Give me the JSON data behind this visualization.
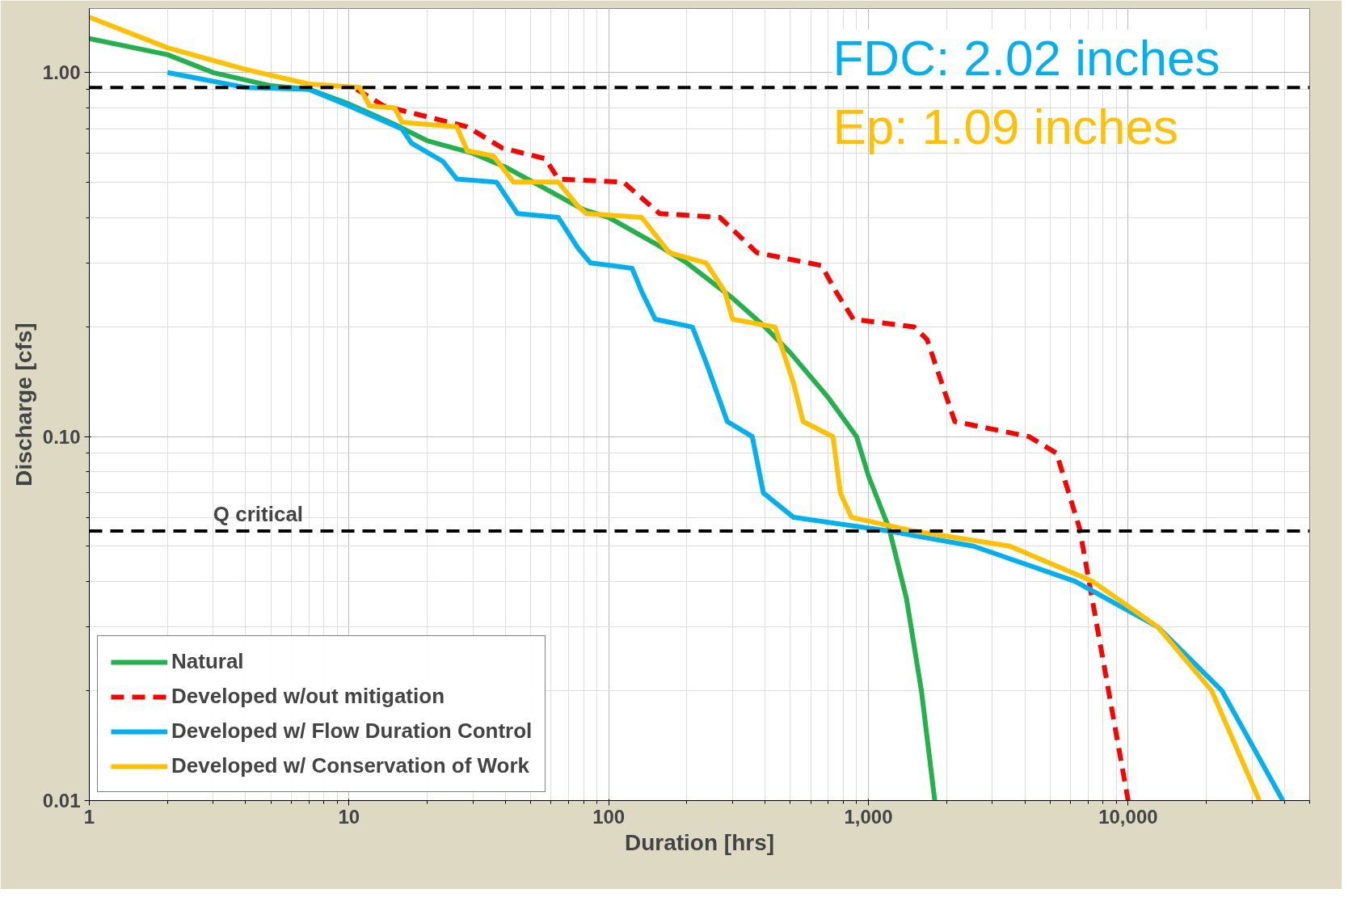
{
  "chart_data": {
    "type": "line",
    "xlabel": "Duration [hrs]",
    "ylabel": "Discharge [cfs]",
    "log": "xy",
    "xlim": [
      1,
      50000
    ],
    "ylim": [
      0.01,
      1.5
    ],
    "xticks": [
      1,
      10,
      100,
      {
        "value": 1000,
        "label": "1,000"
      },
      {
        "value": 10000,
        "label": "10,000"
      }
    ],
    "yticks": [
      {
        "value": 0.01,
        "label": "0.01"
      },
      {
        "value": 0.1,
        "label": "0.10"
      },
      {
        "value": 1,
        "label": "1.00"
      }
    ],
    "grid": true,
    "legend": "bottom left",
    "line_style": "solid",
    "series": [
      {
        "name": "Natural",
        "color": "#22b14c",
        "x": [
          1,
          2,
          3,
          5,
          7,
          10,
          15,
          20,
          30,
          40,
          60,
          80,
          100,
          150,
          200,
          300,
          400,
          500,
          700,
          900,
          1000,
          1200,
          1400,
          1600,
          1800
        ],
        "values": [
          1.24,
          1.12,
          1.0,
          0.92,
          0.9,
          0.82,
          0.72,
          0.65,
          0.6,
          0.55,
          0.47,
          0.42,
          0.4,
          0.34,
          0.3,
          0.24,
          0.2,
          0.17,
          0.128,
          0.1,
          0.078,
          0.056,
          0.036,
          0.02,
          0.01
        ]
      },
      {
        "name": "Developed w/out mitigation",
        "color": "#ff0000",
        "line_style": "dashed",
        "x": [
          10.7,
          13.6,
          28.5,
          39,
          57,
          64,
          114,
          157,
          268,
          372,
          660,
          750,
          875,
          1500,
          1680,
          2150,
          4150,
          5300,
          6500,
          10000
        ],
        "values": [
          0.9,
          0.81,
          0.71,
          0.62,
          0.58,
          0.51,
          0.5,
          0.41,
          0.4,
          0.32,
          0.295,
          0.25,
          0.21,
          0.2,
          0.185,
          0.11,
          0.1,
          0.09,
          0.056,
          0.01
        ]
      },
      {
        "name": "Developed w/ Flow Duration Control",
        "color": "#00b0f0",
        "x": [
          2,
          4,
          7,
          10,
          16,
          17.4,
          23,
          26,
          37,
          44.5,
          64,
          76,
          85,
          123,
          134,
          151,
          210,
          237,
          286,
          357,
          394,
          515,
          1200,
          2540,
          6260,
          13000,
          23000,
          39400
        ],
        "values": [
          1.0,
          0.91,
          0.9,
          0.81,
          0.7,
          0.64,
          0.57,
          0.51,
          0.5,
          0.41,
          0.4,
          0.33,
          0.3,
          0.29,
          0.25,
          0.21,
          0.2,
          0.16,
          0.11,
          0.1,
          0.07,
          0.06,
          0.055,
          0.05,
          0.04,
          0.03,
          0.02,
          0.01
        ]
      },
      {
        "name": "Developed w/ Conservation of Work",
        "color": "#ffc000",
        "x": [
          1,
          2,
          4,
          7,
          11,
          12,
          15,
          16,
          26,
          28.5,
          36,
          43,
          64,
          76,
          82,
          134,
          171,
          237,
          280,
          300,
          437,
          515,
          560,
          730,
          780,
          860,
          1500,
          3500,
          7300,
          13000,
          21000,
          32000
        ],
        "values": [
          1.42,
          1.17,
          1.02,
          0.93,
          0.91,
          0.81,
          0.8,
          0.73,
          0.71,
          0.61,
          0.59,
          0.5,
          0.5,
          0.43,
          0.41,
          0.4,
          0.32,
          0.3,
          0.25,
          0.21,
          0.2,
          0.14,
          0.11,
          0.1,
          0.07,
          0.06,
          0.055,
          0.05,
          0.04,
          0.03,
          0.02,
          0.01
        ]
      }
    ],
    "ref_lines": [
      {
        "axis": "y",
        "value": 0.91,
        "label": null,
        "color": "#000000",
        "line_style": "dashed"
      },
      {
        "axis": "y",
        "value": 0.055,
        "label": "Q critical",
        "color": "#000000",
        "line_style": "dashed"
      }
    ],
    "annotations": [
      "FDC: 2.02 inches",
      "Ep: 1.09 inches"
    ]
  }
}
